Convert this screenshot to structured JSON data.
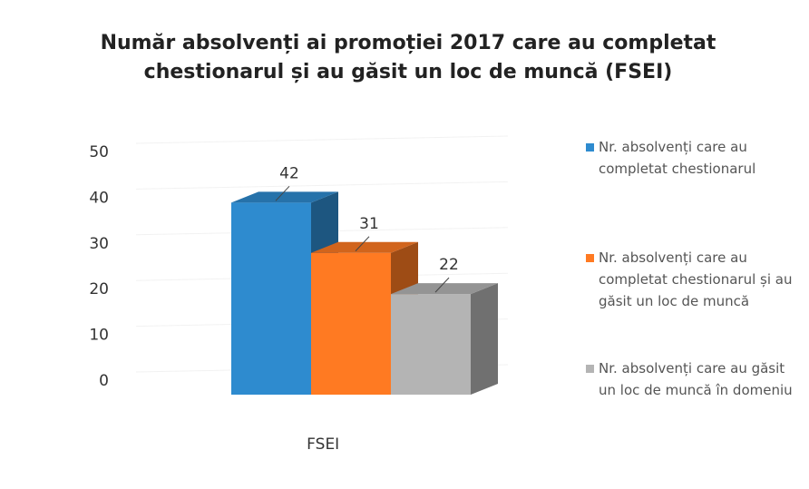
{
  "chart_data": {
    "type": "bar3d",
    "title": "Număr absolvenți ai promoției 2017 care au completat chestionarul și au găsit un loc de muncă (FSEI)",
    "categories": [
      "FSEI"
    ],
    "series": [
      {
        "name": "Nr. absolvenți care au completat chestionarul",
        "color": "#2e8bcf",
        "values": [
          42
        ]
      },
      {
        "name": "Nr. absolvenți care au completat chestionarul și au găsit un loc de muncă",
        "color": "#ff7a22",
        "values": [
          31
        ]
      },
      {
        "name": "Nr. absolvenți care au găsit un loc de muncă în domeniu",
        "color": "#b4b4b4",
        "values": [
          22
        ]
      }
    ],
    "ylim": [
      0,
      50
    ],
    "yticks": [
      0,
      10,
      20,
      30,
      40,
      50
    ],
    "legend": "right"
  }
}
